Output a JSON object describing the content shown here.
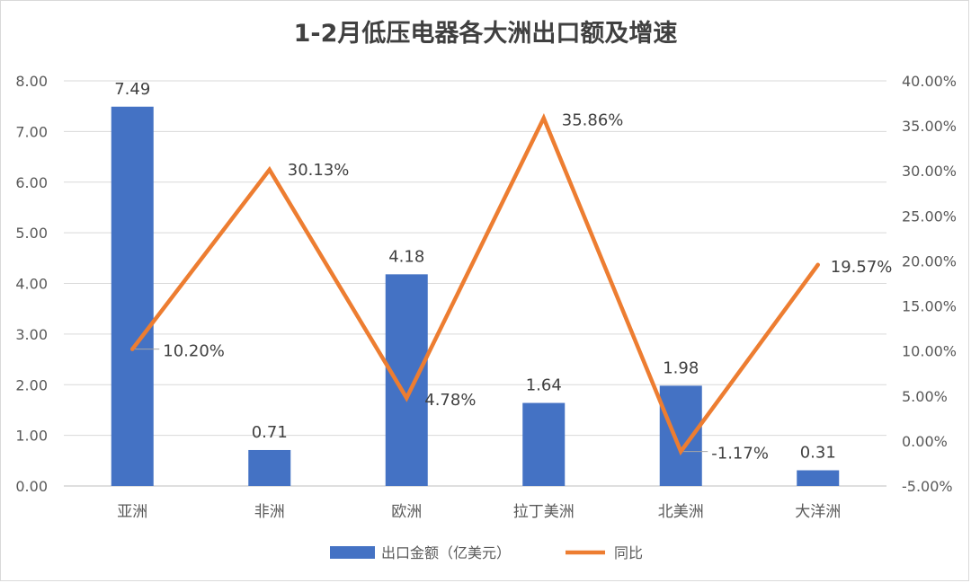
{
  "chart_data": {
    "type": "bar+line",
    "title": "1-2月低压电器各大洲出口额及增速",
    "categories": [
      "亚洲",
      "非洲",
      "欧洲",
      "拉丁美洲",
      "北美洲",
      "大洋洲"
    ],
    "series": [
      {
        "name": "出口金额（亿美元）",
        "type": "bar",
        "axis": "left",
        "color": "#4472C4",
        "values": [
          7.49,
          0.71,
          4.18,
          1.64,
          1.98,
          0.31
        ],
        "labels": [
          "7.49",
          "0.71",
          "4.18",
          "1.64",
          "1.98",
          "0.31"
        ]
      },
      {
        "name": "同比",
        "type": "line",
        "axis": "right",
        "color": "#ED7D31",
        "values": [
          10.2,
          30.13,
          4.78,
          35.86,
          -1.17,
          19.57
        ],
        "labels": [
          "10.20%",
          "30.13%",
          "4.78%",
          "35.86%",
          "-1.17%",
          "19.57%"
        ]
      }
    ],
    "y_left": {
      "min": 0,
      "max": 8,
      "step": 1,
      "tick_labels": [
        "0.00",
        "1.00",
        "2.00",
        "3.00",
        "4.00",
        "5.00",
        "6.00",
        "7.00",
        "8.00"
      ]
    },
    "y_right": {
      "min": -5,
      "max": 40,
      "step": 5,
      "tick_labels": [
        "-5.00%",
        "0.00%",
        "5.00%",
        "10.00%",
        "15.00%",
        "20.00%",
        "25.00%",
        "30.00%",
        "35.00%",
        "40.00%"
      ]
    },
    "grid": true,
    "legend": "bottom-center"
  }
}
